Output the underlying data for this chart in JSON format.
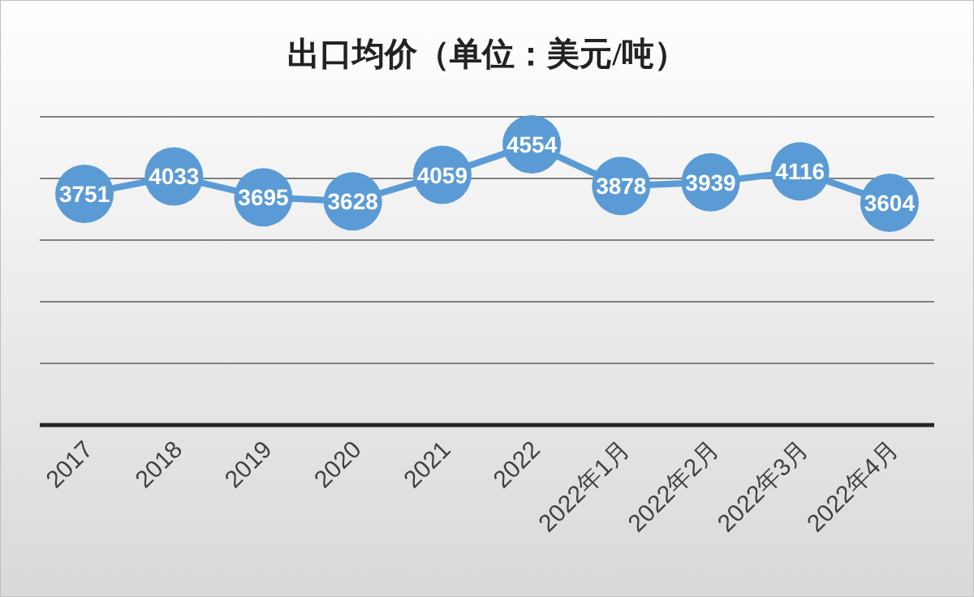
{
  "chart_data": {
    "type": "line",
    "title": "出口均价（单位：美元/吨）",
    "categories": [
      "2017",
      "2018",
      "2019",
      "2020",
      "2021",
      "2022",
      "2022年1月",
      "2022年2月",
      "2022年3月",
      "2022年4月"
    ],
    "series": [
      {
        "color": "#5b9bd5",
        "values": [
          3751,
          4033,
          3695,
          3628,
          4059,
          4554,
          3878,
          3939,
          4116,
          3604
        ]
      }
    ],
    "ylim": [
      0,
      5000
    ],
    "yticks": [
      {
        "value": 0,
        "label": null
      },
      {
        "value": 1000,
        "label": null
      },
      {
        "value": 2000,
        "label": null
      },
      {
        "value": 3000,
        "label": null
      },
      {
        "value": 4000,
        "label": null
      },
      {
        "value": 5000,
        "label": null
      }
    ],
    "grid": "y",
    "tick_labels": "x",
    "marker": "circle",
    "line_style": "solid",
    "data_labels": true
  }
}
